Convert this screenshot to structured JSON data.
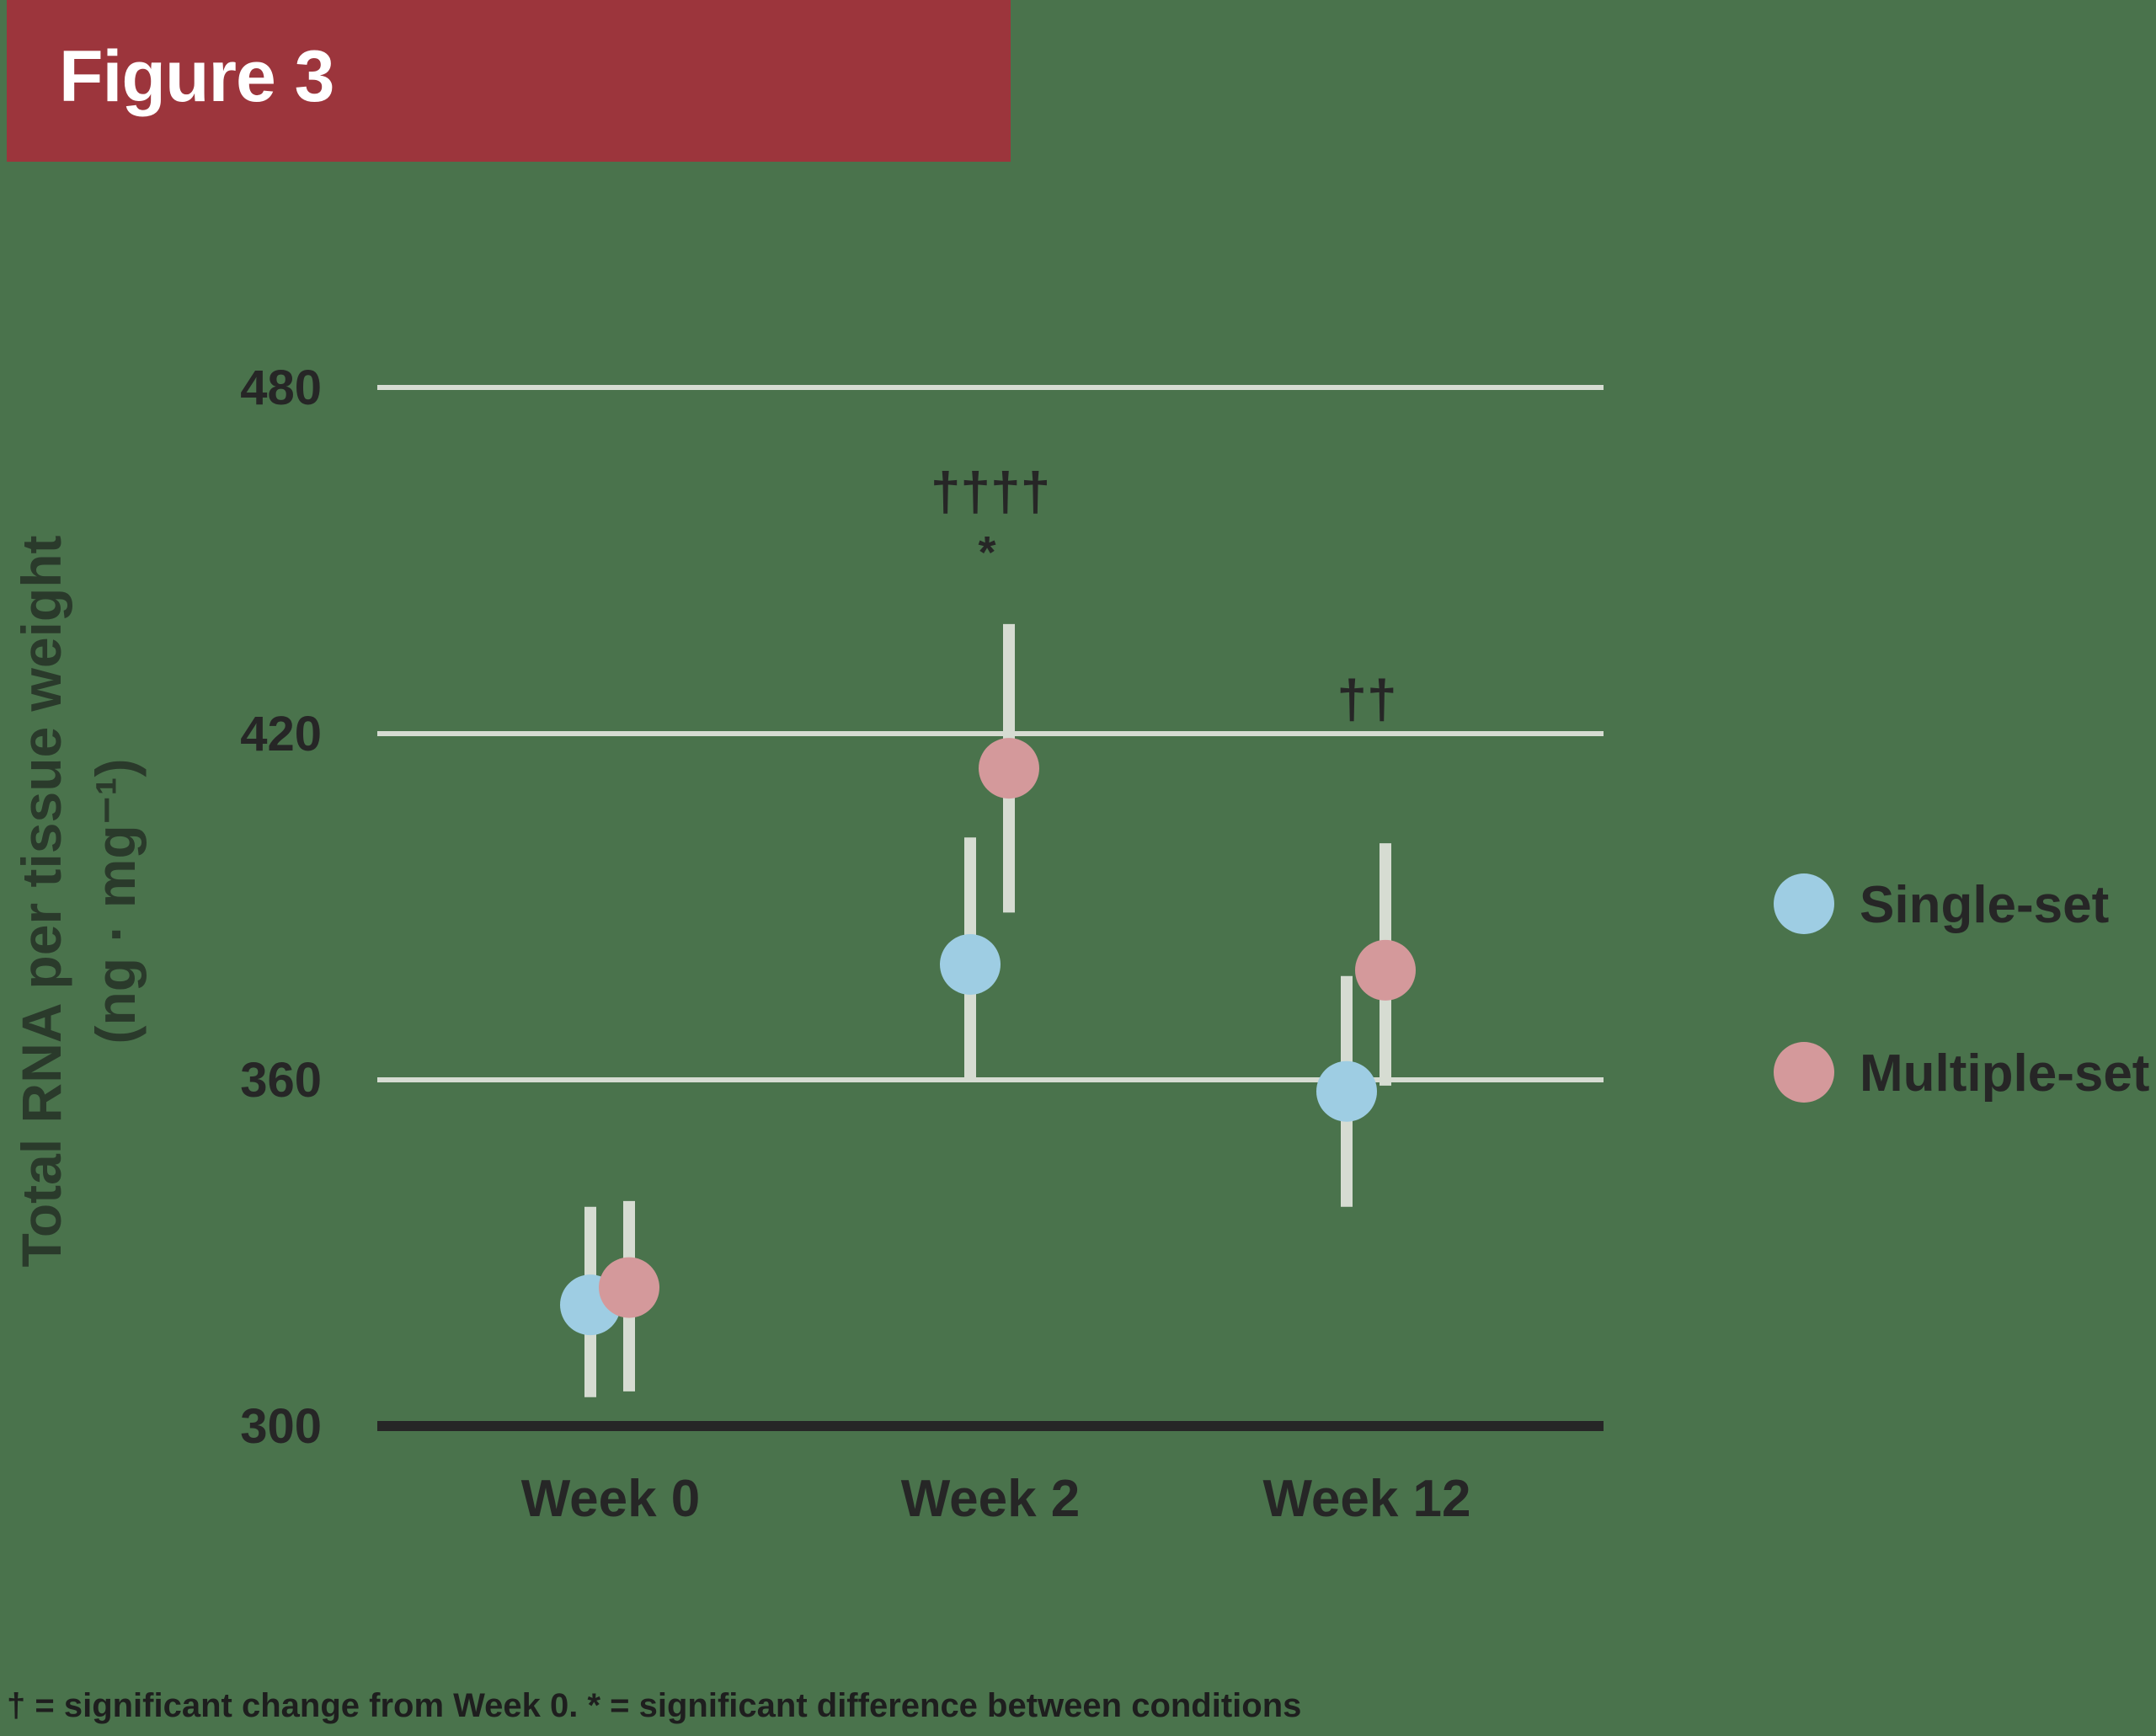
{
  "header": {
    "title": "Figure 3"
  },
  "chart_data": {
    "type": "scatter",
    "title": "",
    "xlabel": "",
    "ylabel": "Total RNA per tissue weight",
    "ylabel_units": "(ng · mg⁻¹)",
    "ylim": [
      300,
      480
    ],
    "yticks": [
      300,
      360,
      420,
      480
    ],
    "ytick_labels": [
      "300",
      "360",
      "420",
      "480"
    ],
    "categories": [
      "Week 0",
      "Week 2",
      "Week 12"
    ],
    "grid": true,
    "legend_position": "right",
    "series": [
      {
        "name": "Single-set",
        "color": "#9ecde3",
        "values": [
          321,
          380,
          358
        ],
        "err_low": [
          305,
          360,
          338
        ],
        "err_high": [
          338,
          402,
          378
        ]
      },
      {
        "name": "Multiple-set",
        "color": "#d4999b",
        "values": [
          324,
          414,
          379
        ],
        "err_low": [
          306,
          389,
          359
        ],
        "err_high": [
          339,
          439,
          401
        ]
      }
    ],
    "annotations": [
      {
        "category_index": 1,
        "text": "††††",
        "y": 462
      },
      {
        "category_index": 1,
        "text": "*",
        "y": 452
      },
      {
        "category_index": 2,
        "text": "††",
        "y": 426
      }
    ],
    "footnote": "† = significant change from Week 0. * = significant difference between conditions"
  },
  "colors": {
    "background": "#4a734c",
    "banner": "#9c353c",
    "gridline": "#d6dcd2",
    "baseline": "#262626",
    "errorbar": "#d6dcd2",
    "text": "#262626"
  }
}
